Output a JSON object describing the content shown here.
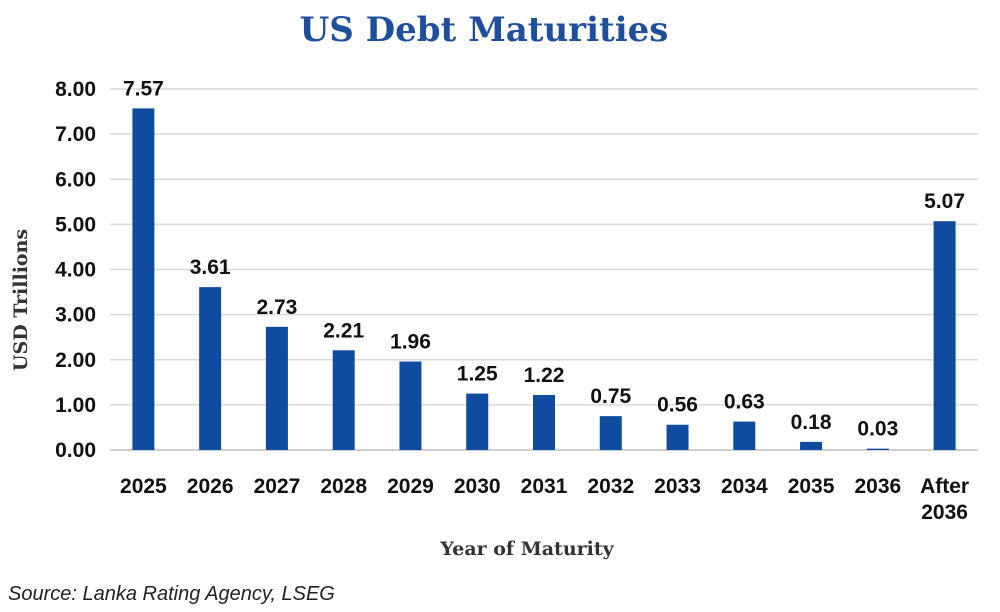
{
  "chart_data": {
    "type": "bar",
    "title": "US Debt Maturities",
    "xlabel": "Year of Maturity",
    "ylabel": "USD Trillions",
    "categories": [
      [
        "2025"
      ],
      [
        "2026"
      ],
      [
        "2027"
      ],
      [
        "2028"
      ],
      [
        "2029"
      ],
      [
        "2030"
      ],
      [
        "2031"
      ],
      [
        "2032"
      ],
      [
        "2033"
      ],
      [
        "2034"
      ],
      [
        "2035"
      ],
      [
        "2036"
      ],
      [
        "After",
        "2036"
      ]
    ],
    "values": [
      7.57,
      3.61,
      2.73,
      2.21,
      1.96,
      1.25,
      1.22,
      0.75,
      0.56,
      0.63,
      0.18,
      0.03,
      5.07
    ],
    "value_labels": [
      "7.57",
      "3.61",
      "2.73",
      "2.21",
      "1.96",
      "1.25",
      "1.22",
      "0.75",
      "0.56",
      "0.63",
      "0.18",
      "0.03",
      "5.07"
    ],
    "ylim": [
      0,
      8
    ],
    "yticks": [
      0,
      1,
      2,
      3,
      4,
      5,
      6,
      7,
      8
    ],
    "ytick_labels": [
      "0.00",
      "1.00",
      "2.00",
      "3.00",
      "4.00",
      "5.00",
      "6.00",
      "7.00",
      "8.00"
    ],
    "grid": true,
    "bar_color": "#0f4c9f",
    "title_color": "#1f4e9c"
  },
  "source": "Source: Lanka Rating Agency, LSEG"
}
